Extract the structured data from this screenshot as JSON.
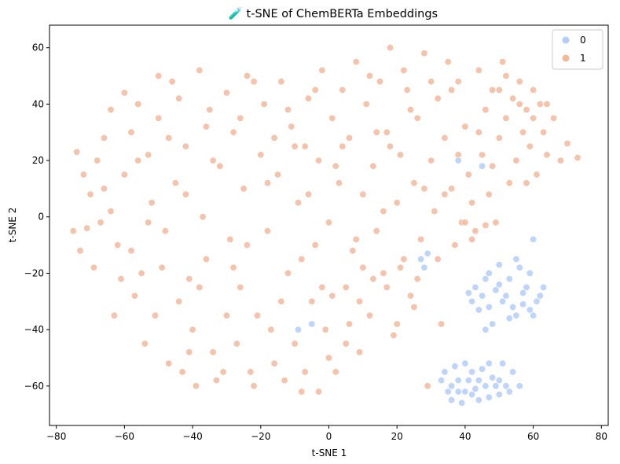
{
  "chart_data": {
    "type": "scatter",
    "title": "🧪 t-SNE of ChemBERTa Embeddings",
    "xlabel": "t-SNE 1",
    "ylabel": "t-SNE 2",
    "xlim": [
      -82,
      82
    ],
    "ylim": [
      -74,
      68
    ],
    "xticks": [
      -80,
      -60,
      -40,
      -20,
      0,
      20,
      40,
      60,
      80
    ],
    "yticks": [
      -60,
      -40,
      -20,
      0,
      20,
      40,
      60
    ],
    "grid": false,
    "legend": {
      "placement": "top-right",
      "entries": [
        "0",
        "1"
      ]
    },
    "colors": {
      "0": "#b4cdf9",
      "1": "#f3b99c"
    },
    "series": [
      {
        "name": "1",
        "points": [
          [
            -74,
            23
          ],
          [
            -72,
            15
          ],
          [
            -70,
            8
          ],
          [
            -68,
            20
          ],
          [
            -66,
            28
          ],
          [
            -64,
            2
          ],
          [
            -62,
            -10
          ],
          [
            -60,
            15
          ],
          [
            -58,
            30
          ],
          [
            -56,
            40
          ],
          [
            -55,
            -20
          ],
          [
            -53,
            22
          ],
          [
            -52,
            5
          ],
          [
            -50,
            35
          ],
          [
            -48,
            -5
          ],
          [
            -46,
            48
          ],
          [
            -45,
            12
          ],
          [
            -44,
            -30
          ],
          [
            -42,
            25
          ],
          [
            -40,
            -40
          ],
          [
            -38,
            52
          ],
          [
            -37,
            0
          ],
          [
            -36,
            -15
          ],
          [
            -35,
            38
          ],
          [
            -34,
            -48
          ],
          [
            -32,
            18
          ],
          [
            -31,
            -55
          ],
          [
            -30,
            44
          ],
          [
            -29,
            -8
          ],
          [
            -28,
            30
          ],
          [
            -26,
            -25
          ],
          [
            -25,
            10
          ],
          [
            -24,
            50
          ],
          [
            -22,
            -60
          ],
          [
            -21,
            -35
          ],
          [
            -20,
            22
          ],
          [
            -19,
            40
          ],
          [
            -18,
            -5
          ],
          [
            -16,
            -52
          ],
          [
            -15,
            15
          ],
          [
            -14,
            48
          ],
          [
            -12,
            -20
          ],
          [
            -11,
            32
          ],
          [
            -10,
            -45
          ],
          [
            -9,
            5
          ],
          [
            -8,
            -62
          ],
          [
            -7,
            25
          ],
          [
            -6,
            42
          ],
          [
            -5,
            -30
          ],
          [
            -4,
            -10
          ],
          [
            -3,
            20
          ],
          [
            -2,
            52
          ],
          [
            -1,
            -40
          ],
          [
            0,
            -2
          ],
          [
            1,
            35
          ],
          [
            2,
            -55
          ],
          [
            3,
            12
          ],
          [
            4,
            45
          ],
          [
            5,
            -25
          ],
          [
            6,
            28
          ],
          [
            7,
            -12
          ],
          [
            8,
            55
          ],
          [
            9,
            -48
          ],
          [
            10,
            8
          ],
          [
            11,
            40
          ],
          [
            12,
            -35
          ],
          [
            13,
            18
          ],
          [
            14,
            -5
          ],
          [
            15,
            48
          ],
          [
            16,
            -20
          ],
          [
            17,
            30
          ],
          [
            18,
            60
          ],
          [
            19,
            -42
          ],
          [
            20,
            5
          ],
          [
            21,
            22
          ],
          [
            22,
            -15
          ],
          [
            23,
            45
          ],
          [
            24,
            -28
          ],
          [
            25,
            12
          ],
          [
            26,
            35
          ],
          [
            27,
            -8
          ],
          [
            28,
            58
          ],
          [
            29,
            -60
          ],
          [
            30,
            20
          ],
          [
            31,
            2
          ],
          [
            32,
            42
          ],
          [
            33,
            -38
          ],
          [
            34,
            28
          ],
          [
            35,
            55
          ],
          [
            36,
            10
          ],
          [
            37,
            -10
          ],
          [
            38,
            48
          ],
          [
            39,
            -2
          ],
          [
            40,
            32
          ],
          [
            41,
            15
          ],
          [
            42,
            5
          ],
          [
            43,
            -5
          ],
          [
            44,
            52
          ],
          [
            45,
            22
          ],
          [
            46,
            38
          ],
          [
            47,
            8
          ],
          [
            48,
            45
          ],
          [
            49,
            -2
          ],
          [
            50,
            28
          ],
          [
            51,
            55
          ],
          [
            52,
            35
          ],
          [
            53,
            12
          ],
          [
            54,
            42
          ],
          [
            55,
            20
          ],
          [
            56,
            48
          ],
          [
            57,
            30
          ],
          [
            58,
            38
          ],
          [
            59,
            25
          ],
          [
            60,
            45
          ],
          [
            61,
            15
          ],
          [
            62,
            40
          ],
          [
            63,
            30
          ],
          [
            64,
            22
          ],
          [
            66,
            35
          ],
          [
            68,
            20
          ],
          [
            70,
            26
          ],
          [
            73,
            21
          ],
          [
            -75,
            -5
          ],
          [
            -73,
            -12
          ],
          [
            -69,
            -18
          ],
          [
            -67,
            -2
          ],
          [
            -63,
            -35
          ],
          [
            -61,
            -22
          ],
          [
            -57,
            -28
          ],
          [
            -54,
            -45
          ],
          [
            -51,
            -35
          ],
          [
            -49,
            -18
          ],
          [
            -47,
            -52
          ],
          [
            -43,
            -55
          ],
          [
            -41,
            -22
          ],
          [
            -39,
            -60
          ],
          [
            -33,
            -58
          ],
          [
            -27,
            -45
          ],
          [
            -23,
            -55
          ],
          [
            -17,
            -40
          ],
          [
            -13,
            -58
          ],
          [
            -7,
            -55
          ],
          [
            -3,
            -62
          ],
          [
            1,
            -28
          ],
          [
            5,
            -45
          ],
          [
            9,
            -30
          ],
          [
            13,
            -22
          ],
          [
            17,
            -25
          ],
          [
            21,
            -18
          ],
          [
            25,
            -32
          ],
          [
            -64,
            38
          ],
          [
            -60,
            44
          ],
          [
            -56,
            20
          ],
          [
            -50,
            50
          ],
          [
            -44,
            42
          ],
          [
            -42,
            8
          ],
          [
            -38,
            -25
          ],
          [
            -34,
            20
          ],
          [
            -30,
            -35
          ],
          [
            -26,
            35
          ],
          [
            -22,
            48
          ],
          [
            -18,
            12
          ],
          [
            -14,
            -30
          ],
          [
            -10,
            25
          ],
          [
            -6,
            8
          ],
          [
            -2,
            -25
          ],
          [
            2,
            18
          ],
          [
            6,
            -38
          ],
          [
            10,
            -18
          ],
          [
            14,
            30
          ],
          [
            18,
            25
          ],
          [
            22,
            52
          ],
          [
            26,
            -22
          ],
          [
            30,
            48
          ],
          [
            34,
            8
          ],
          [
            38,
            22
          ],
          [
            42,
            -8
          ],
          [
            46,
            -3
          ],
          [
            50,
            45
          ],
          [
            58,
            12
          ],
          [
            -71,
            -4
          ],
          [
            -66,
            10
          ],
          [
            -58,
            -12
          ],
          [
            -53,
            -2
          ],
          [
            -47,
            28
          ],
          [
            -41,
            -48
          ],
          [
            -36,
            32
          ],
          [
            -28,
            -18
          ],
          [
            -24,
            -10
          ],
          [
            -16,
            28
          ],
          [
            -12,
            38
          ],
          [
            -8,
            -15
          ],
          [
            -4,
            45
          ],
          [
            0,
            -50
          ],
          [
            4,
            25
          ],
          [
            8,
            -8
          ],
          [
            12,
            50
          ],
          [
            16,
            2
          ],
          [
            20,
            -38
          ],
          [
            24,
            38
          ],
          [
            28,
            10
          ],
          [
            32,
            -15
          ],
          [
            36,
            45
          ],
          [
            40,
            -2
          ],
          [
            44,
            30
          ],
          [
            48,
            18
          ],
          [
            52,
            50
          ],
          [
            56,
            40
          ],
          [
            60,
            35
          ],
          [
            64,
            40
          ]
        ]
      },
      {
        "name": "0",
        "points": [
          [
            43,
            -25
          ],
          [
            45,
            -28
          ],
          [
            47,
            -32
          ],
          [
            49,
            -26
          ],
          [
            51,
            -30
          ],
          [
            53,
            -22
          ],
          [
            55,
            -35
          ],
          [
            57,
            -27
          ],
          [
            59,
            -20
          ],
          [
            61,
            -30
          ],
          [
            44,
            -33
          ],
          [
            46,
            -22
          ],
          [
            48,
            -38
          ],
          [
            50,
            -24
          ],
          [
            52,
            -28
          ],
          [
            54,
            -32
          ],
          [
            56,
            -18
          ],
          [
            58,
            -25
          ],
          [
            60,
            -35
          ],
          [
            62,
            -28
          ],
          [
            42,
            -30
          ],
          [
            47,
            -20
          ],
          [
            53,
            -36
          ],
          [
            57,
            -31
          ],
          [
            50,
            -17
          ],
          [
            63,
            -25
          ],
          [
            41,
            -27
          ],
          [
            55,
            -15
          ],
          [
            59,
            -33
          ],
          [
            46,
            -40
          ],
          [
            34,
            -55
          ],
          [
            36,
            -60
          ],
          [
            38,
            -58
          ],
          [
            40,
            -62
          ],
          [
            42,
            -55
          ],
          [
            44,
            -65
          ],
          [
            46,
            -60
          ],
          [
            48,
            -57
          ],
          [
            50,
            -63
          ],
          [
            52,
            -60
          ],
          [
            35,
            -62
          ],
          [
            37,
            -53
          ],
          [
            39,
            -66
          ],
          [
            41,
            -58
          ],
          [
            43,
            -61
          ],
          [
            45,
            -54
          ],
          [
            47,
            -64
          ],
          [
            49,
            -60
          ],
          [
            51,
            -52
          ],
          [
            53,
            -62
          ],
          [
            33,
            -58
          ],
          [
            38,
            -62
          ],
          [
            44,
            -58
          ],
          [
            47,
            -52
          ],
          [
            50,
            -58
          ],
          [
            54,
            -55
          ],
          [
            40,
            -52
          ],
          [
            36,
            -65
          ],
          [
            42,
            -63
          ],
          [
            56,
            -60
          ],
          [
            27,
            -15
          ],
          [
            29,
            -13
          ],
          [
            28,
            -18
          ],
          [
            38,
            20
          ],
          [
            45,
            18
          ],
          [
            -9,
            -40
          ],
          [
            60,
            -8
          ],
          [
            -5,
            -38
          ]
        ]
      }
    ]
  }
}
